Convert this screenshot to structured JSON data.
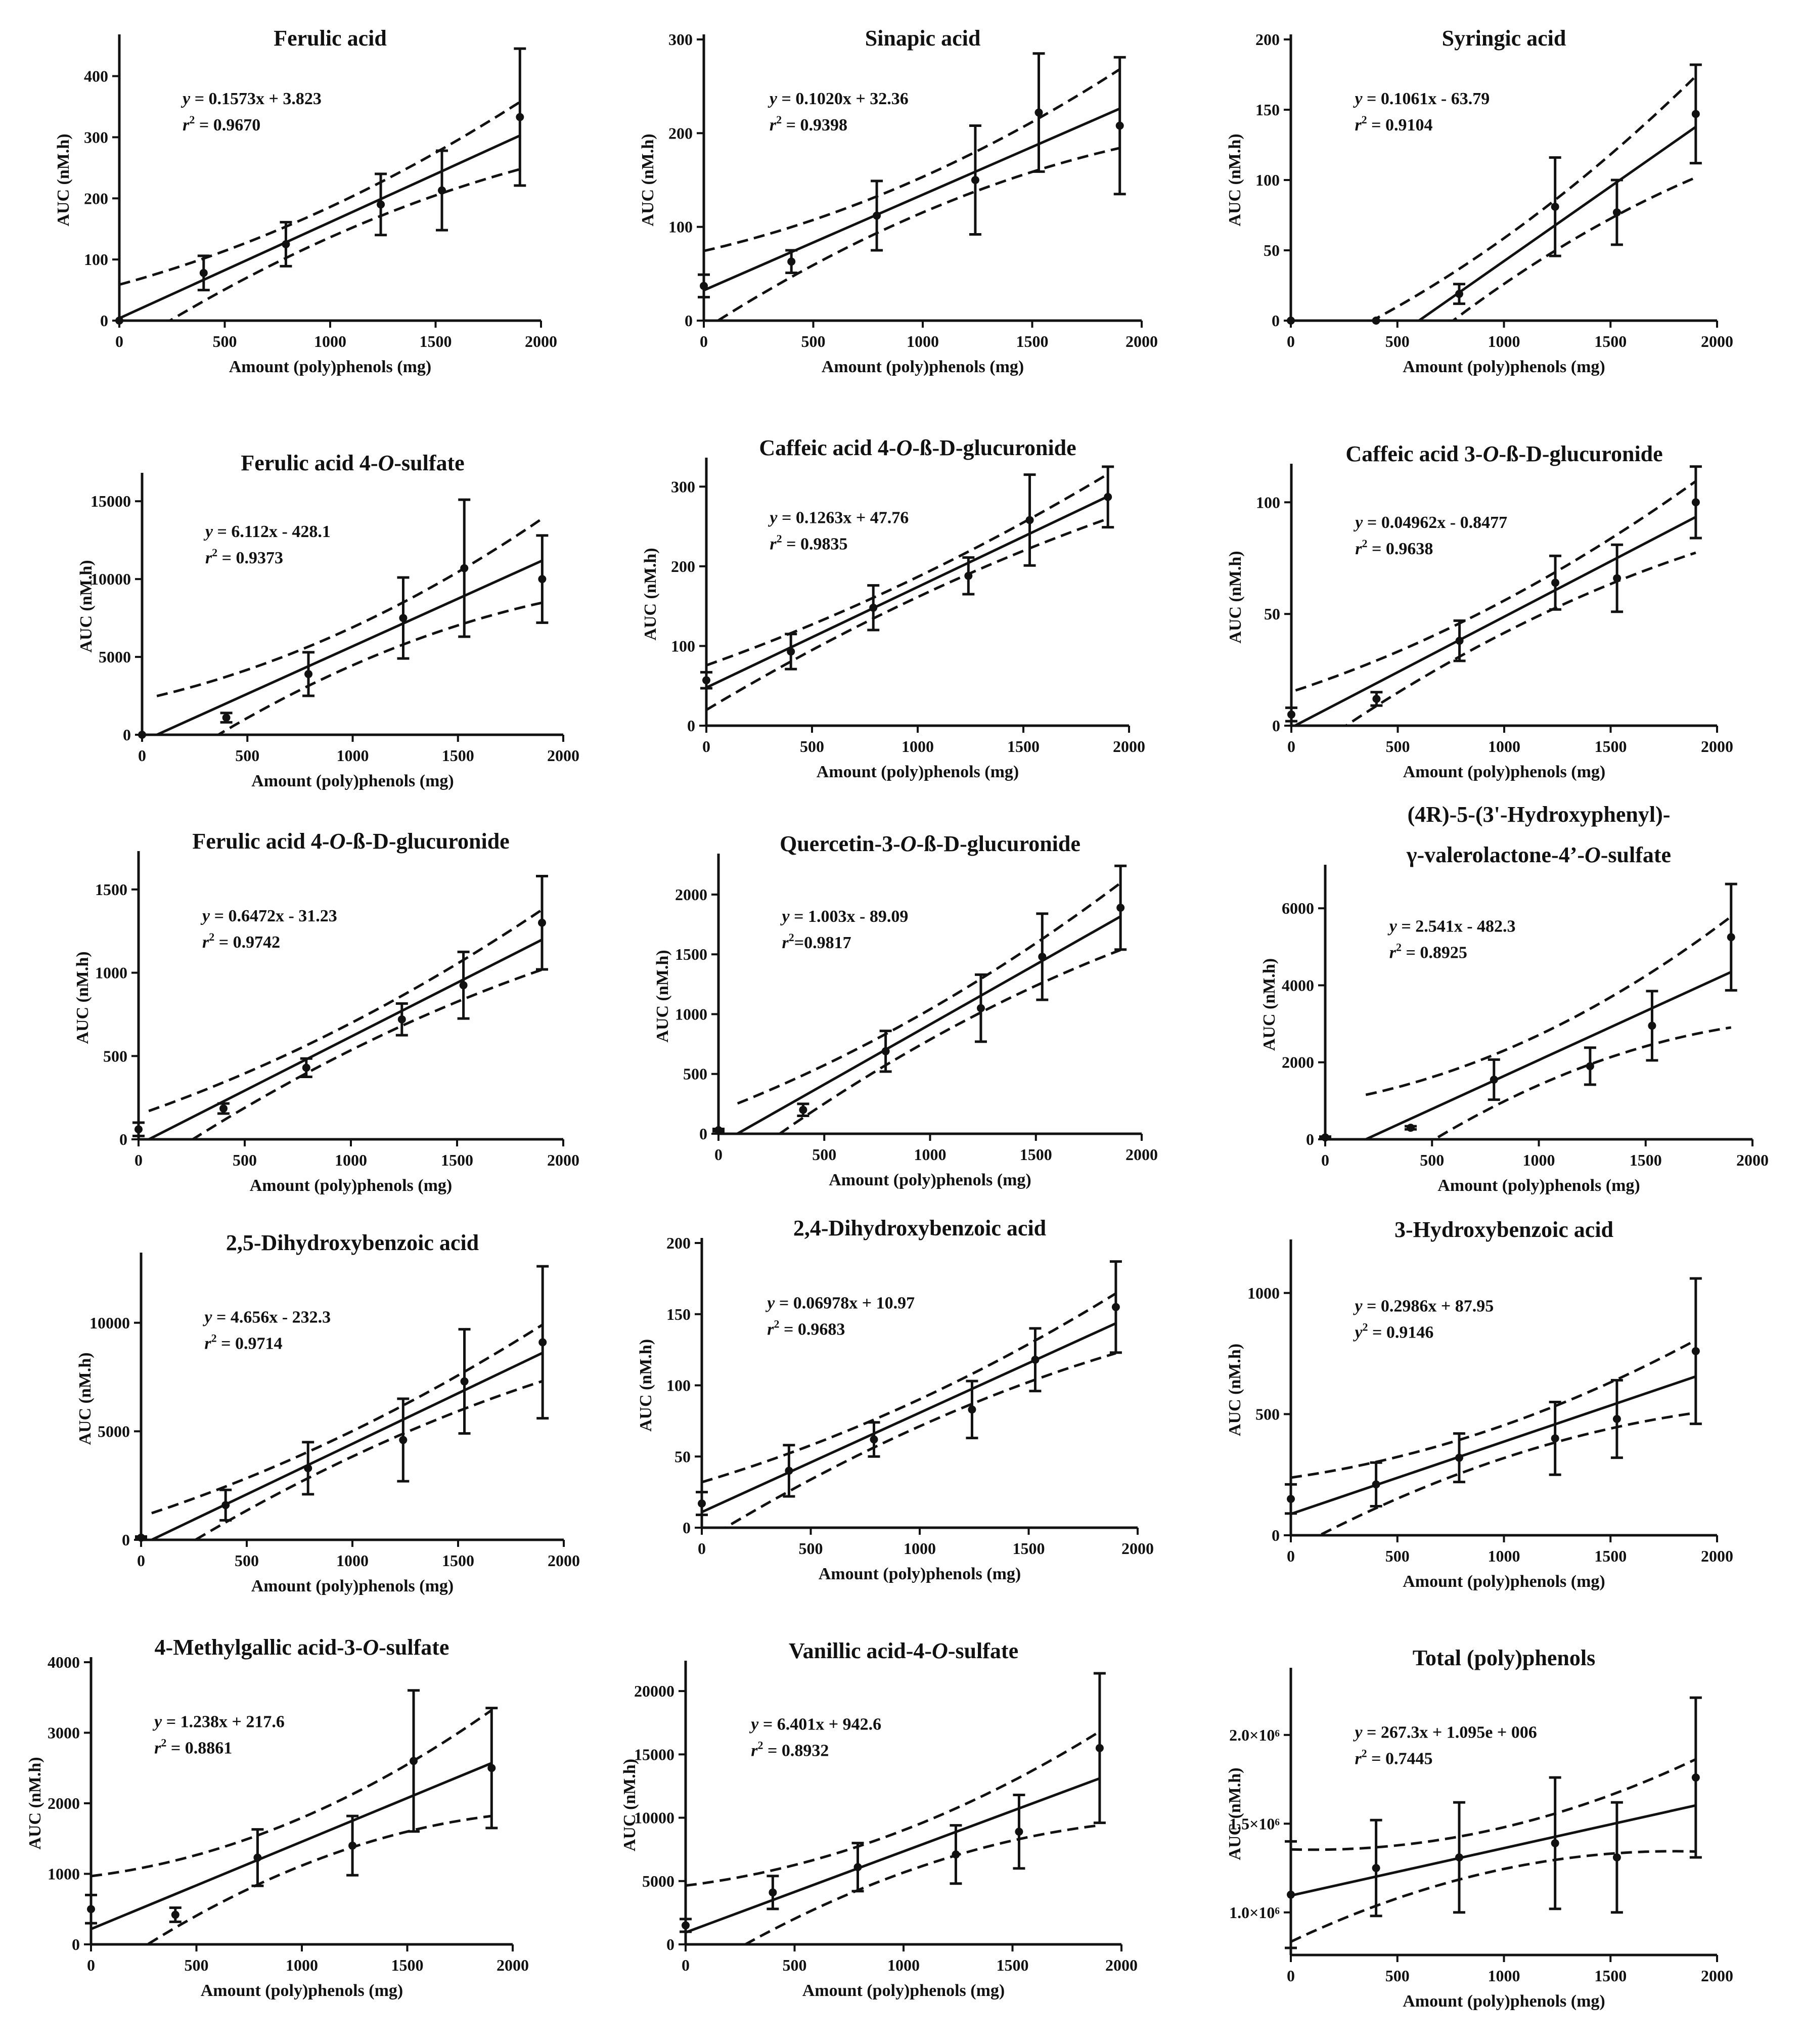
{
  "figure": {
    "background": "#ffffff",
    "ink": "#111111"
  },
  "chart_data": [
    {
      "type": "scatter",
      "title": "Ferulic acid",
      "xlabel": "Amount (poly)phenols (mg)",
      "ylabel": "AUC (nM.h)",
      "xlim": [
        0,
        2000
      ],
      "ylim": [
        0,
        460
      ],
      "xticks": [
        0,
        500,
        1000,
        1500,
        2000
      ],
      "yticks": [
        0,
        100,
        200,
        300,
        400
      ],
      "yticklabels": [
        "0",
        "100",
        "200",
        "300",
        "400"
      ],
      "x": [
        0,
        400,
        790,
        1240,
        1530,
        1900
      ],
      "y": [
        0,
        78,
        125,
        190,
        213,
        333
      ],
      "err": [
        0,
        28,
        36,
        50,
        65,
        112
      ],
      "fit": {
        "slope": 0.1573,
        "intercept": 3.823
      },
      "band": [
        55,
        58
      ],
      "equation_prefix": "y",
      "equation_rhs": " = 0.1573x + 3.823",
      "r2_prefix": "r",
      "r2_value": " = 0.9670"
    },
    {
      "type": "scatter",
      "title": "Sinapic acid",
      "xlabel": "Amount (poly)phenols (mg)",
      "ylabel": "AUC (nM.h)",
      "xlim": [
        0,
        2000
      ],
      "ylim": [
        0,
        300
      ],
      "xticks": [
        0,
        500,
        1000,
        1500,
        2000
      ],
      "yticks": [
        0,
        100,
        200,
        300
      ],
      "yticklabels": [
        "0",
        "100",
        "200",
        "300"
      ],
      "x": [
        0,
        400,
        790,
        1240,
        1530,
        1900
      ],
      "y": [
        37,
        63,
        112,
        150,
        222,
        208
      ],
      "err": [
        12,
        12,
        37,
        58,
        63,
        73
      ],
      "fit": {
        "slope": 0.102,
        "intercept": 32.36
      },
      "band": [
        42,
        42
      ],
      "equation_prefix": "y",
      "equation_rhs": " = 0.1020x + 32.36",
      "r2_prefix": "r",
      "r2_value": " = 0.9398"
    },
    {
      "type": "scatter",
      "title": "Syringic acid",
      "xlabel": "Amount (poly)phenols (mg)",
      "ylabel": "AUC (nM.h)",
      "xlim": [
        0,
        2000
      ],
      "ylim": [
        0,
        200
      ],
      "xticks": [
        0,
        500,
        1000,
        1500,
        2000
      ],
      "yticks": [
        0,
        50,
        100,
        150,
        200
      ],
      "yticklabels": [
        "0",
        "50",
        "100",
        "150",
        "200"
      ],
      "x": [
        0,
        400,
        790,
        1240,
        1530,
        1900
      ],
      "y": [
        0,
        0,
        19,
        81,
        77,
        147
      ],
      "err": [
        0,
        0,
        7,
        35,
        23,
        35
      ],
      "fit": {
        "slope": 0.1061,
        "intercept": -63.79
      },
      "fit_xmin": 300,
      "band": [
        36,
        43
      ],
      "equation_prefix": "y",
      "equation_rhs": " = 0.1061x - 63.79",
      "r2_prefix": "r",
      "r2_value": " = 0.9104"
    },
    {
      "type": "scatter",
      "title_main": "Ferulic acid 4-",
      "title_ital": "O",
      "title_tail": "-sulfate",
      "xlabel": "Amount (poly)phenols (mg)",
      "ylabel": "AUC (nM.h)",
      "xlim": [
        0,
        2000
      ],
      "ylim": [
        0,
        16500
      ],
      "xticks": [
        0,
        500,
        1000,
        1500,
        2000
      ],
      "yticks": [
        0,
        5000,
        10000,
        15000
      ],
      "yticklabels": [
        "0",
        "5000",
        "10000",
        "15000"
      ],
      "x": [
        0,
        400,
        790,
        1240,
        1530,
        1900
      ],
      "y": [
        0,
        1100,
        3900,
        7500,
        10700,
        10000
      ],
      "err": [
        0,
        300,
        1400,
        2600,
        4400,
        2800
      ],
      "fit": {
        "slope": 6.112,
        "intercept": -428.1
      },
      "fit_xmin": 70,
      "band": [
        2700,
        2500
      ],
      "equation_prefix": "y",
      "equation_rhs": " = 6.112x - 428.1",
      "r2_prefix": "r",
      "r2_value": " = 0.9373"
    },
    {
      "type": "scatter",
      "title_main": "Caffeic acid 4-",
      "title_ital": "O",
      "title_tail": "-ß-D-glucuronide",
      "xlabel": "Amount (poly)phenols (mg)",
      "ylabel": "AUC (nM.h)",
      "xlim": [
        0,
        2000
      ],
      "ylim": [
        0,
        330
      ],
      "xticks": [
        0,
        500,
        1000,
        1500,
        2000
      ],
      "yticks": [
        0,
        100,
        200,
        300
      ],
      "yticklabels": [
        "0",
        "100",
        "200",
        "300"
      ],
      "x": [
        0,
        400,
        790,
        1240,
        1530,
        1900
      ],
      "y": [
        57,
        93,
        148,
        188,
        258,
        287
      ],
      "err": [
        10,
        22,
        28,
        23,
        57,
        38
      ],
      "fit": {
        "slope": 0.1263,
        "intercept": 47.76
      },
      "band": [
        28,
        26
      ],
      "equation_prefix": "y",
      "equation_rhs": " = 0.1263x + 47.76",
      "r2_prefix": "r",
      "r2_value": " = 0.9835"
    },
    {
      "type": "scatter",
      "title_main": "Caffeic acid 3-",
      "title_ital": "O",
      "title_tail": "-ß-D-glucuronide",
      "xlabel": "Amount (poly)phenols (mg)",
      "ylabel": "AUC (nM.h)",
      "xlim": [
        0,
        2000
      ],
      "ylim": [
        0,
        115
      ],
      "xticks": [
        0,
        500,
        1000,
        1500,
        2000
      ],
      "yticks": [
        0,
        50,
        100
      ],
      "yticklabels": [
        "0",
        "50",
        "100"
      ],
      "x": [
        0,
        400,
        790,
        1240,
        1530,
        1900
      ],
      "y": [
        5,
        12,
        38,
        64,
        66,
        100
      ],
      "err": [
        3,
        3,
        9,
        12,
        15,
        16
      ],
      "fit": {
        "slope": 0.04962,
        "intercept": -0.8477
      },
      "fit_xmin": 20,
      "band": [
        16,
        14
      ],
      "equation_prefix": "y",
      "equation_rhs": " = 0.04962x - 0.8477",
      "r2_prefix": "r",
      "r2_value": " = 0.9638"
    },
    {
      "type": "scatter",
      "title_main": "Ferulic acid 4-",
      "title_ital": "O",
      "title_tail": "-ß-D-glucuronide",
      "xlabel": "Amount (poly)phenols (mg)",
      "ylabel": "AUC (nM.h)",
      "xlim": [
        0,
        2000
      ],
      "ylim": [
        0,
        1700
      ],
      "xticks": [
        0,
        500,
        1000,
        1500,
        2000
      ],
      "yticks": [
        0,
        500,
        1000,
        1500
      ],
      "yticklabels": [
        "0",
        "500",
        "1000",
        "1500"
      ],
      "x": [
        0,
        400,
        790,
        1240,
        1530,
        1900
      ],
      "y": [
        60,
        185,
        430,
        720,
        925,
        1300
      ],
      "err": [
        40,
        30,
        55,
        95,
        200,
        280
      ],
      "fit": {
        "slope": 0.6472,
        "intercept": -31.23
      },
      "fit_xmin": 48,
      "band": [
        180,
        170
      ],
      "equation_prefix": "y",
      "equation_rhs": " = 0.6472x - 31.23",
      "r2_prefix": "r",
      "r2_value": " = 0.9742"
    },
    {
      "type": "scatter",
      "title_main": "Quercetin-3-",
      "title_ital": "O",
      "title_tail": "-ß-D-glucuronide",
      "xlabel": "Amount (poly)phenols (mg)",
      "ylabel": "AUC (nM.h)",
      "xlim": [
        0,
        2000
      ],
      "ylim": [
        0,
        2300
      ],
      "xticks": [
        0,
        500,
        1000,
        1500,
        2000
      ],
      "yticks": [
        0,
        500,
        1000,
        1500,
        2000
      ],
      "yticklabels": [
        "0",
        "500",
        "1000",
        "1500",
        "2000"
      ],
      "x": [
        0,
        400,
        790,
        1240,
        1530,
        1900
      ],
      "y": [
        30,
        200,
        690,
        1050,
        1480,
        1890
      ],
      "err": [
        10,
        50,
        170,
        280,
        360,
        350
      ],
      "fit": {
        "slope": 1.003,
        "intercept": -89.09
      },
      "fit_xmin": 90,
      "band": [
        280,
        220
      ],
      "equation_prefix": "y",
      "equation_rhs": " = 1.003x - 89.09",
      "r2_prefix": "r",
      "r2_value": "=0.9817"
    },
    {
      "type": "scatter",
      "title_line1": "(4R)-5-(3'-Hydroxyphenyl)-",
      "title_main": "γ-valerolactone-4’-",
      "title_ital": "O",
      "title_tail": "-sulfate",
      "xlabel": "Amount (poly)phenols (mg)",
      "ylabel": "AUC (nM.h)",
      "xlim": [
        0,
        2000
      ],
      "ylim": [
        0,
        7000
      ],
      "xticks": [
        0,
        500,
        1000,
        1500,
        2000
      ],
      "yticks": [
        0,
        2000,
        4000,
        6000
      ],
      "yticklabels": [
        "0",
        "2000",
        "4000",
        "6000"
      ],
      "x": [
        0,
        400,
        790,
        1240,
        1530,
        1900
      ],
      "y": [
        50,
        300,
        1550,
        1900,
        2950,
        5250
      ],
      "err": [
        20,
        40,
        520,
        480,
        900,
        1380
      ],
      "fit": {
        "slope": 2.541,
        "intercept": -482.3
      },
      "fit_xmin": 190,
      "band": [
        1440,
        1380
      ],
      "equation_prefix": "y",
      "equation_rhs": " = 2.541x - 482.3",
      "r2_prefix": "r",
      "r2_value": " = 0.8925"
    },
    {
      "type": "scatter",
      "title": "2,5-Dihydroxybenzoic acid",
      "xlabel": "Amount (poly)phenols (mg)",
      "ylabel": "AUC (nM.h)",
      "xlim": [
        0,
        2000
      ],
      "ylim": [
        0,
        13000
      ],
      "xticks": [
        0,
        500,
        1000,
        1500,
        2000
      ],
      "yticks": [
        0,
        5000,
        10000
      ],
      "yticklabels": [
        "0",
        "5000",
        "10000"
      ],
      "x": [
        0,
        400,
        790,
        1240,
        1530,
        1900
      ],
      "y": [
        100,
        1600,
        3300,
        4600,
        7300,
        9100
      ],
      "err": [
        50,
        700,
        1200,
        1900,
        2400,
        3500
      ],
      "fit": {
        "slope": 4.656,
        "intercept": -232.3
      },
      "fit_xmin": 50,
      "band": [
        1300,
        1250
      ],
      "equation_prefix": "y",
      "equation_rhs": " = 4.656x - 232.3",
      "r2_prefix": "r",
      "r2_value": " = 0.9714"
    },
    {
      "type": "scatter",
      "title": "2,4-Dihydroxybenzoic acid",
      "xlabel": "Amount (poly)phenols (mg)",
      "ylabel": "AUC (nM.h)",
      "xlim": [
        0,
        2000
      ],
      "ylim": [
        0,
        200
      ],
      "xticks": [
        0,
        500,
        1000,
        1500,
        2000
      ],
      "yticks": [
        0,
        50,
        100,
        150,
        200
      ],
      "yticklabels": [
        "0",
        "50",
        "100",
        "150",
        "200"
      ],
      "x": [
        0,
        400,
        790,
        1240,
        1530,
        1900
      ],
      "y": [
        17,
        40,
        62,
        83,
        118,
        155
      ],
      "err": [
        8,
        18,
        12,
        20,
        22,
        32
      ],
      "fit": {
        "slope": 0.06978,
        "intercept": 10.97
      },
      "band": [
        21,
        20
      ],
      "equation_prefix": "y",
      "equation_rhs": " = 0.06978x + 10.97",
      "r2_prefix": "r",
      "r2_value": " = 0.9683"
    },
    {
      "type": "scatter",
      "title": "3-Hydroxybenzoic acid",
      "xlabel": "Amount (poly)phenols (mg)",
      "ylabel": "AUC (nM.h)",
      "xlim": [
        0,
        2000
      ],
      "ylim": [
        0,
        1200
      ],
      "xticks": [
        0,
        500,
        1000,
        1500,
        2000
      ],
      "yticks": [
        0,
        500,
        1000
      ],
      "yticklabels": [
        "0",
        "500",
        "1000"
      ],
      "x": [
        0,
        400,
        790,
        1240,
        1530,
        1900
      ],
      "y": [
        150,
        210,
        320,
        400,
        480,
        760
      ],
      "err": [
        60,
        90,
        100,
        150,
        160,
        300
      ],
      "fit": {
        "slope": 0.2986,
        "intercept": 87.95
      },
      "band": [
        150,
        145
      ],
      "equation_prefix": "y",
      "equation_rhs": " = 0.2986x + 87.95",
      "r2_prefix": "y",
      "r2_value": " = 0.9146"
    },
    {
      "type": "scatter",
      "title_main": "4-Methylgallic acid-3-",
      "title_ital": "O",
      "title_tail": "-sulfate",
      "xlabel": "Amount (poly)phenols (mg)",
      "ylabel": "AUC (nM.h)",
      "xlim": [
        0,
        2000
      ],
      "ylim": [
        0,
        4000
      ],
      "xticks": [
        0,
        500,
        1000,
        1500,
        2000
      ],
      "yticks": [
        0,
        1000,
        2000,
        3000,
        4000
      ],
      "yticklabels": [
        "0",
        "1000",
        "2000",
        "3000",
        "4000"
      ],
      "x": [
        0,
        400,
        790,
        1240,
        1530,
        1900
      ],
      "y": [
        500,
        420,
        1230,
        1400,
        2600,
        2500
      ],
      "err": [
        200,
        100,
        400,
        420,
        1000,
        850
      ],
      "fit": {
        "slope": 1.238,
        "intercept": 217.6
      },
      "band": [
        750,
        730
      ],
      "equation_prefix": "y",
      "equation_rhs": " = 1.238x + 217.6",
      "r2_prefix": "r",
      "r2_value": " = 0.8861"
    },
    {
      "type": "scatter",
      "title": "Vanillic acid-4-O-sulfate",
      "title_main": "Vanillic acid-4-",
      "title_ital": "O",
      "title_tail": "-sulfate",
      "xlabel": "Amount (poly)phenols (mg)",
      "ylabel": "AUC (nM.h)",
      "xlim": [
        0,
        2000
      ],
      "ylim": [
        0,
        22000
      ],
      "xticks": [
        0,
        500,
        1000,
        1500,
        2000
      ],
      "yticks": [
        0,
        5000,
        10000,
        15000,
        20000
      ],
      "yticklabels": [
        "0",
        "5000",
        "10000",
        "15000",
        "20000"
      ],
      "x": [
        0,
        400,
        790,
        1240,
        1530,
        1900
      ],
      "y": [
        1500,
        4100,
        6100,
        7100,
        8900,
        15500
      ],
      "err": [
        500,
        1300,
        1900,
        2300,
        2900,
        5900
      ],
      "fit": {
        "slope": 6.401,
        "intercept": 942.6
      },
      "band": [
        3700,
        3500
      ],
      "equation_prefix": "y",
      "equation_rhs": " = 6.401x + 942.6",
      "r2_prefix": "r",
      "r2_value": " = 0.8932"
    },
    {
      "type": "scatter",
      "title": "Total (poly)phenols",
      "xlabel": "Amount (poly)phenols (mg)",
      "ylabel": "AUC (nM.h)",
      "xlim": [
        0,
        2000
      ],
      "ylim": [
        760000,
        2350000
      ],
      "xticks": [
        0,
        500,
        1000,
        1500,
        2000
      ],
      "yticks": [
        1000000,
        1500000,
        2000000
      ],
      "yticklabels": [
        "1.0×10⁶",
        "1.5×10⁶",
        "2.0×10⁶"
      ],
      "x": [
        0,
        400,
        790,
        1240,
        1530,
        1900
      ],
      "y": [
        1100000,
        1250000,
        1310000,
        1390000,
        1310000,
        1760000
      ],
      "err": [
        300000,
        270000,
        310000,
        370000,
        310000,
        450000
      ],
      "fit": {
        "slope": 267.3,
        "intercept": 1095000
      },
      "band": [
        260000,
        250000
      ],
      "equation_prefix": "y",
      "equation_rhs": " = 267.3x + 1.095e + 006",
      "r2_prefix": "r",
      "r2_value": " = 0.7445"
    }
  ]
}
